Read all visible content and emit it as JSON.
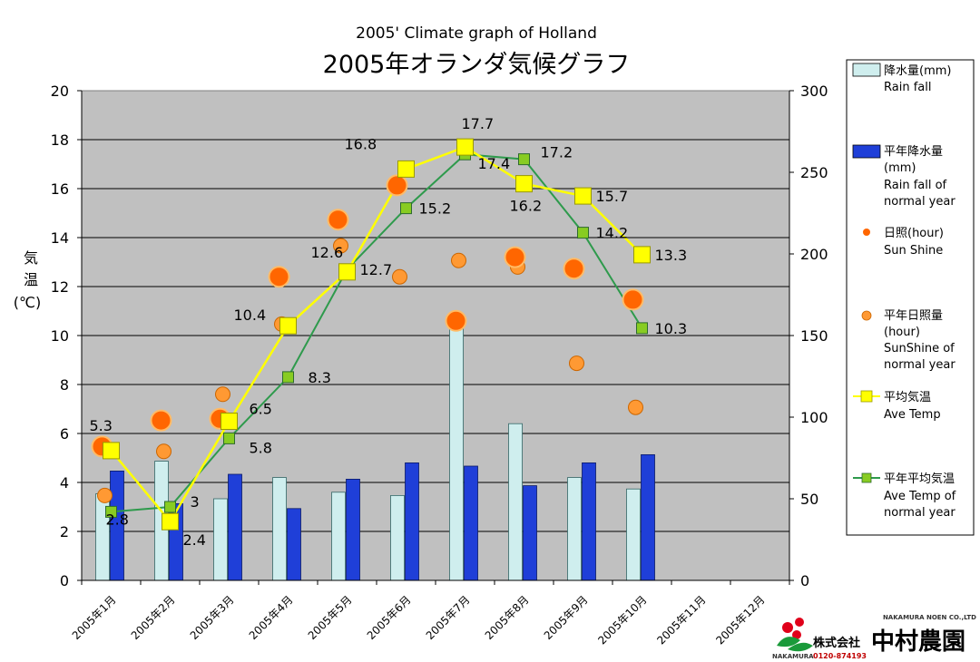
{
  "chart_data": {
    "type": "bar",
    "subtitle": "2005' Climate graph of Holland",
    "title": "2005年オランダ気候グラフ",
    "ylabel": "気温(℃)",
    "ylabel_lines": [
      "気",
      "温",
      "(℃)"
    ],
    "ylim": [
      0,
      20
    ],
    "y_ticks": [
      "0",
      "2",
      "4",
      "6",
      "8",
      "10",
      "12",
      "14",
      "16",
      "18",
      "20"
    ],
    "y2lim": [
      0,
      300
    ],
    "y2_ticks": [
      "0",
      "50",
      "100",
      "150",
      "200",
      "250",
      "300"
    ],
    "grid": true,
    "legend_position": "right",
    "categories": [
      "2005年1月",
      "2005年2月",
      "2005年3月",
      "2005年4月",
      "2005年5月",
      "2005年6月",
      "2005年7月",
      "2005年8月",
      "2005年9月",
      "2005年10月",
      "2005年11月",
      "2005年12月"
    ],
    "series": [
      {
        "key": "rain",
        "axis": "right",
        "kind": "bar",
        "name": "降水量(mm)",
        "name_en": "Rain fall",
        "values": [
          53,
          73,
          50,
          63,
          54,
          52,
          158,
          96,
          63,
          56,
          null,
          null
        ]
      },
      {
        "key": "rain_normal",
        "axis": "right",
        "kind": "bar",
        "name": "平年降水量(mm)",
        "name_en": "Rain fall of normal year",
        "values": [
          67,
          47,
          65,
          44,
          62,
          72,
          70,
          58,
          72,
          77,
          null,
          null
        ]
      },
      {
        "key": "sun",
        "axis": "right",
        "kind": "dot",
        "name": "日照(hour)",
        "name_en": "Sun Shine",
        "values": [
          82,
          98,
          99,
          186,
          221,
          242,
          159,
          198,
          191,
          172,
          null,
          null
        ]
      },
      {
        "key": "sun_normal",
        "axis": "right",
        "kind": "dot",
        "name": "平年日照量(hour)",
        "name_en": "SunShine of normal year",
        "values": [
          52,
          79,
          114,
          157,
          205,
          186,
          196,
          192,
          133,
          106,
          null,
          null
        ]
      },
      {
        "key": "temp",
        "axis": "left",
        "kind": "line",
        "name": "平均気温",
        "name_en": "Ave Temp",
        "values": [
          5.3,
          2.4,
          6.5,
          10.4,
          12.6,
          16.8,
          17.7,
          16.2,
          15.7,
          13.3,
          null,
          null
        ]
      },
      {
        "key": "temp_normal",
        "axis": "left",
        "kind": "line",
        "name": "平年平均気温",
        "name_en": "Ave Temp of normal year",
        "values": [
          2.8,
          3,
          5.8,
          8.3,
          12.7,
          15.2,
          17.4,
          17.2,
          14.2,
          10.3,
          null,
          null
        ]
      }
    ],
    "colors": {
      "plot_bg": "#c0c0c0",
      "rain": "#cfeeee",
      "rain_normal": "#1f3fd8",
      "sun": "#ff6600",
      "sun_normal": "#ff9933",
      "temp": "#ffff00",
      "temp_normal": "#2e9a4c",
      "temp_normal_marker": "#88cc22"
    }
  },
  "logo": {
    "english": "NAKAMURA NOEN CO.,LTD",
    "corp": "株式会社",
    "name": "中村農園",
    "tel": "0120-874193",
    "brand": "NAKAMURA"
  }
}
